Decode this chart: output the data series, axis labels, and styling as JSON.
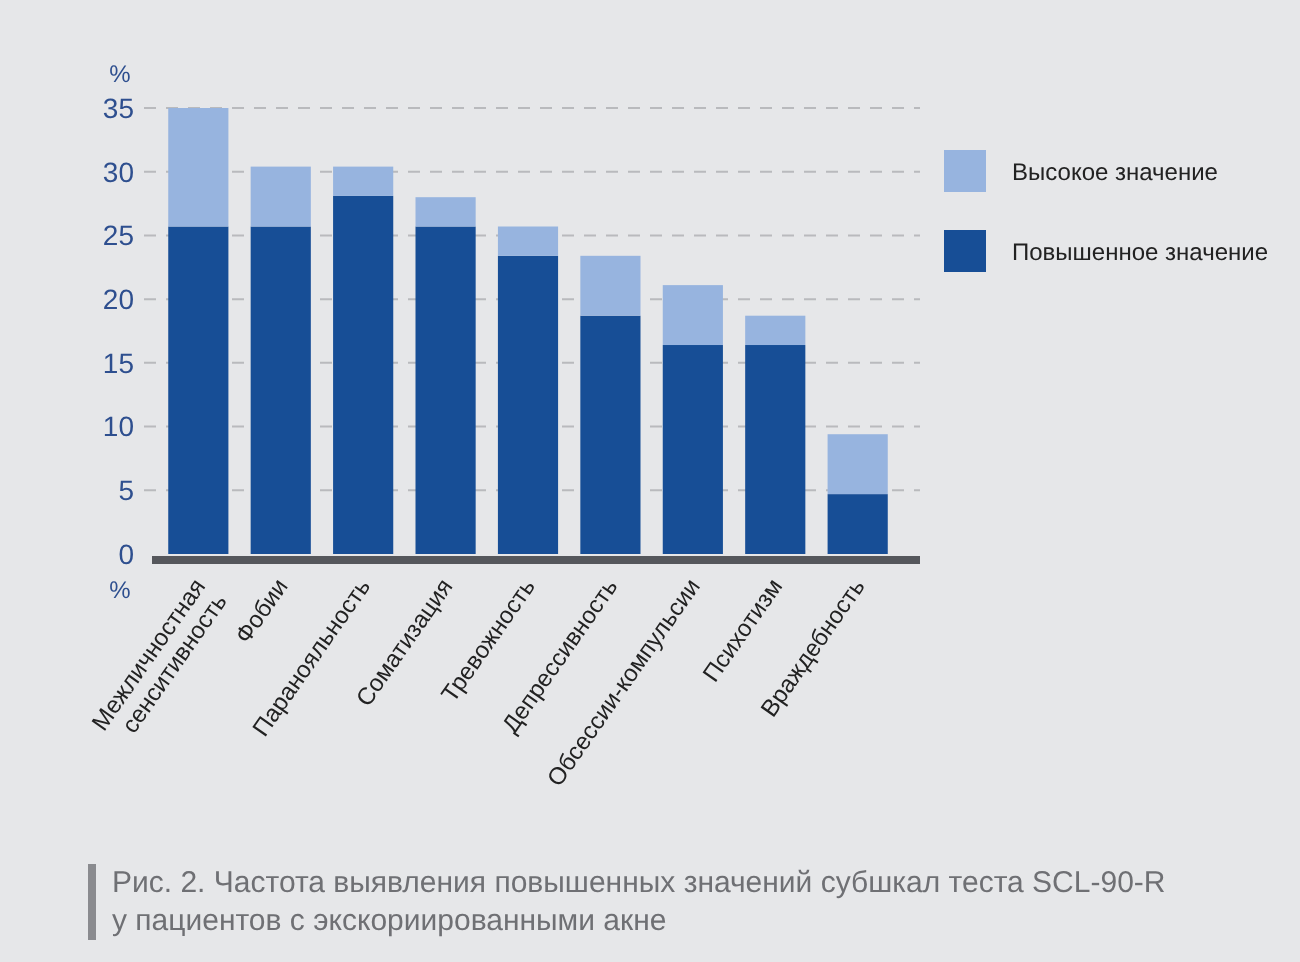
{
  "chart_data": {
    "type": "bar",
    "stacked": true,
    "ylabel": "%",
    "categories": [
      "Межличностная\nсенситивность",
      "Фобии",
      "Паранояльность",
      "Соматизация",
      "Тревожность",
      "Депрессивность",
      "Обсессии-компульсии",
      "Психотизм",
      "Враждебность"
    ],
    "series": [
      {
        "name": "Повышенное значение",
        "color": "#174e96",
        "values": [
          25.7,
          25.7,
          28.1,
          25.7,
          23.4,
          18.7,
          16.4,
          16.4,
          4.7
        ]
      },
      {
        "name": "Высокое значение",
        "color": "#97b4df",
        "values": [
          9.3,
          4.7,
          2.3,
          2.3,
          2.3,
          4.7,
          4.7,
          2.3,
          4.7
        ]
      }
    ],
    "ylim": [
      0,
      35
    ],
    "yticks": [
      0,
      5,
      10,
      15,
      20,
      25,
      30,
      35
    ],
    "grid": "y",
    "legend": "right",
    "annotations": [
      "%",
      "Рис. 2. Частота выявления повышенных значений субшкал теста SCL-90-R\nу пациентов с экскориированными акне"
    ]
  }
}
